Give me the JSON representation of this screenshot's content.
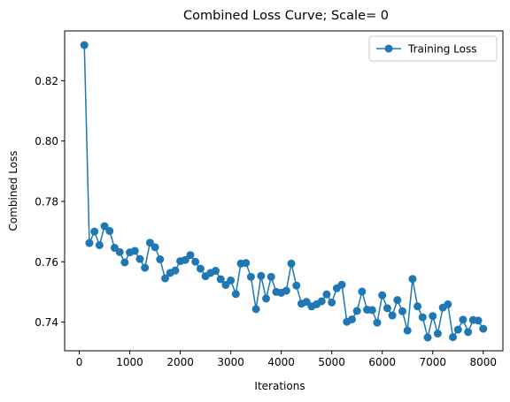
{
  "chart_data": {
    "type": "line",
    "title": "Combined Loss Curve; Scale= 0",
    "xlabel": "Iterations",
    "ylabel": "Combined Loss",
    "xlim": [
      -290,
      8390
    ],
    "ylim": [
      0.7305,
      0.8365
    ],
    "xticks": [
      0,
      1000,
      2000,
      3000,
      4000,
      5000,
      6000,
      7000,
      8000
    ],
    "xtick_labels": [
      "0",
      "1000",
      "2000",
      "3000",
      "4000",
      "5000",
      "6000",
      "7000",
      "8000"
    ],
    "yticks": [
      0.74,
      0.76,
      0.78,
      0.8,
      0.82
    ],
    "ytick_labels": [
      "0.74",
      "0.76",
      "0.78",
      "0.80",
      "0.82"
    ],
    "grid": false,
    "legend_position": "upper-right",
    "series": [
      {
        "name": "Training Loss",
        "color": "#1f77b4",
        "marker": "circle",
        "x": [
          100,
          200,
          300,
          400,
          500,
          600,
          700,
          800,
          900,
          1000,
          1100,
          1200,
          1300,
          1400,
          1500,
          1600,
          1700,
          1800,
          1900,
          2000,
          2100,
          2200,
          2300,
          2400,
          2500,
          2600,
          2700,
          2800,
          2900,
          3000,
          3100,
          3200,
          3300,
          3400,
          3500,
          3600,
          3700,
          3800,
          3900,
          4000,
          4100,
          4200,
          4300,
          4400,
          4500,
          4600,
          4700,
          4800,
          4900,
          5000,
          5100,
          5200,
          5300,
          5400,
          5500,
          5600,
          5700,
          5800,
          5900,
          6000,
          6100,
          6200,
          6300,
          6400,
          6500,
          6600,
          6700,
          6800,
          6900,
          7000,
          7100,
          7200,
          7300,
          7400,
          7500,
          7600,
          7700,
          7800,
          7900,
          8000
        ],
        "y": [
          0.8318,
          0.7662,
          0.77,
          0.7655,
          0.7718,
          0.7702,
          0.7646,
          0.7632,
          0.7598,
          0.7631,
          0.7636,
          0.7609,
          0.758,
          0.7663,
          0.7648,
          0.7608,
          0.7545,
          0.7563,
          0.7571,
          0.7602,
          0.7606,
          0.7622,
          0.76,
          0.7577,
          0.7552,
          0.7563,
          0.757,
          0.7542,
          0.7523,
          0.7538,
          0.7493,
          0.7594,
          0.7596,
          0.755,
          0.7443,
          0.7553,
          0.7478,
          0.755,
          0.75,
          0.7497,
          0.7504,
          0.7594,
          0.7521,
          0.7461,
          0.7467,
          0.7452,
          0.7459,
          0.7469,
          0.7492,
          0.7465,
          0.7512,
          0.7524,
          0.7401,
          0.7409,
          0.7437,
          0.7501,
          0.7441,
          0.744,
          0.7398,
          0.7489,
          0.7446,
          0.7422,
          0.7473,
          0.7436,
          0.7372,
          0.7543,
          0.7452,
          0.7416,
          0.7349,
          0.742,
          0.7362,
          0.7448,
          0.7459,
          0.735,
          0.7375,
          0.7408,
          0.7367,
          0.7407,
          0.7405,
          0.7378
        ]
      }
    ]
  }
}
